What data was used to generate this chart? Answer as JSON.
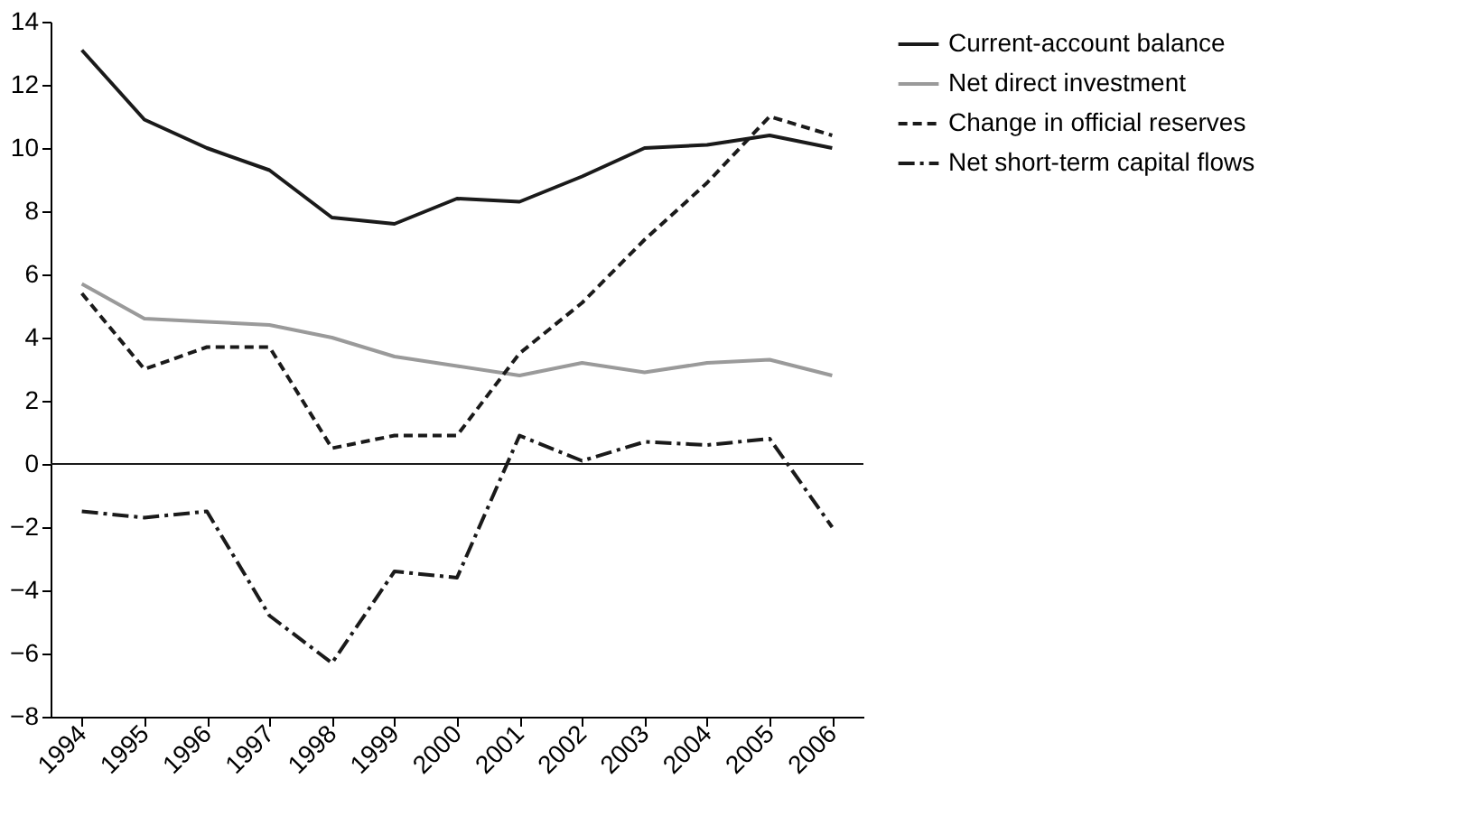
{
  "chart_data": {
    "type": "line",
    "categories": [
      "1994",
      "1995",
      "1996",
      "1997",
      "1998",
      "1999",
      "2000",
      "2001",
      "2002",
      "2003",
      "2004",
      "2005",
      "2006"
    ],
    "series": [
      {
        "name": "Current-account balance",
        "color": "#1a1a1a",
        "line_style": "solid",
        "values": [
          13.1,
          10.9,
          10.0,
          9.3,
          7.8,
          7.6,
          8.4,
          8.3,
          9.1,
          10.0,
          10.1,
          10.4,
          10.0
        ]
      },
      {
        "name": "Net direct investment",
        "color": "#9a9a9a",
        "line_style": "solid",
        "values": [
          5.7,
          4.6,
          4.5,
          4.4,
          4.0,
          3.4,
          3.1,
          2.8,
          3.2,
          2.9,
          3.2,
          3.3,
          2.8
        ]
      },
      {
        "name": "Change in official reserves",
        "color": "#1a1a1a",
        "line_style": "dashed",
        "values": [
          5.4,
          3.0,
          3.7,
          3.7,
          0.5,
          0.9,
          0.9,
          3.5,
          5.1,
          7.1,
          8.9,
          11.0,
          10.4
        ]
      },
      {
        "name": "Net short-term capital flows",
        "color": "#1a1a1a",
        "line_style": "dashdot",
        "values": [
          -1.5,
          -1.7,
          -1.5,
          -4.8,
          -6.3,
          -3.4,
          -3.6,
          0.9,
          0.1,
          0.7,
          0.6,
          0.8,
          -2.0
        ]
      }
    ],
    "ylim": [
      -8,
      14
    ],
    "yticks": [
      -8,
      -6,
      -4,
      -2,
      0,
      2,
      4,
      6,
      8,
      10,
      12,
      14
    ],
    "ref_lines": [
      {
        "axis": "y",
        "value": 0,
        "color": "#1a1a1a"
      }
    ],
    "grid": false,
    "legend": "right",
    "marker": "none"
  }
}
